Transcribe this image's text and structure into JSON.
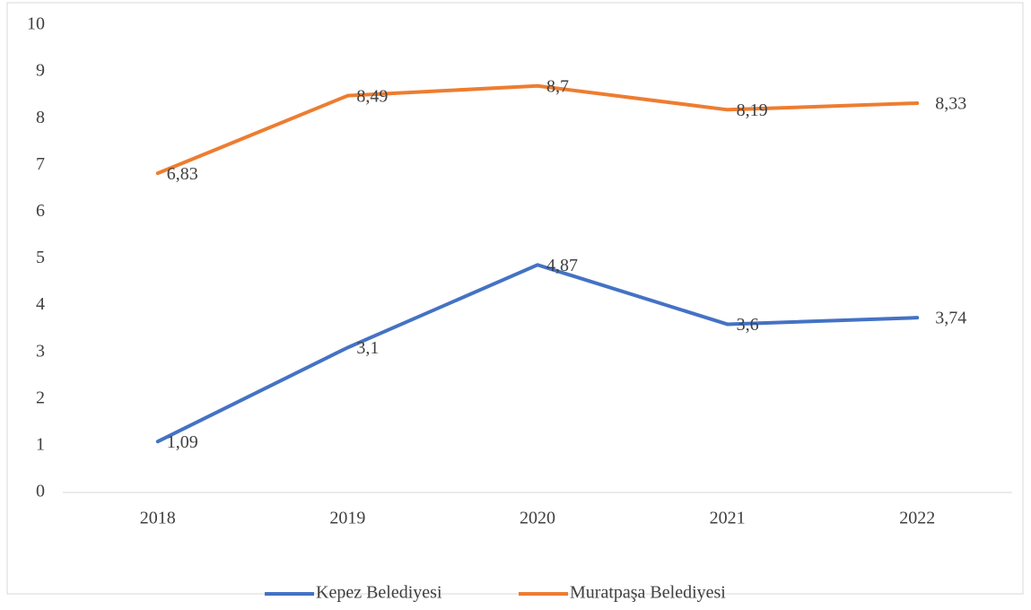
{
  "chart_data": {
    "type": "line",
    "categories": [
      "2018",
      "2019",
      "2020",
      "2021",
      "2022"
    ],
    "series": [
      {
        "name": "Kepez Belediyesi",
        "color": "#4472c4",
        "values": [
          1.09,
          3.1,
          4.87,
          3.6,
          3.74
        ],
        "value_labels": [
          "1,09",
          "3,1",
          "4,87",
          "3,6",
          "3,74"
        ]
      },
      {
        "name": "Muratpaşa Belediyesi",
        "color": "#ed7d31",
        "values": [
          6.83,
          8.49,
          8.7,
          8.19,
          8.33
        ],
        "value_labels": [
          "6,83",
          "8,49",
          "8,7",
          "8,19",
          "8,33"
        ]
      }
    ],
    "ylim": [
      0,
      10
    ],
    "yticks": [
      0,
      1,
      2,
      3,
      4,
      5,
      6,
      7,
      8,
      9,
      10
    ],
    "grid": false,
    "legend": "bottom"
  }
}
